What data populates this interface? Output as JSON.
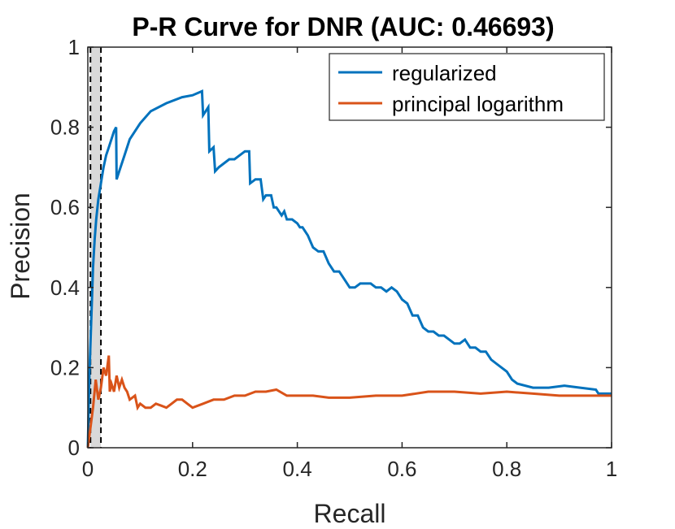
{
  "chart_data": {
    "type": "line",
    "title": "P-R Curve for DNR (AUC: 0.46693)",
    "xlabel": "Recall",
    "ylabel": "Precision",
    "xlim": [
      0,
      1
    ],
    "ylim": [
      0,
      1
    ],
    "xticks": [
      0,
      0.2,
      0.4,
      0.6,
      0.8,
      1
    ],
    "xtick_labels": [
      "0",
      "0.2",
      "0.4",
      "0.6",
      "0.8",
      "1"
    ],
    "yticks": [
      0,
      0.2,
      0.4,
      0.6,
      0.8,
      1
    ],
    "ytick_labels": [
      "0",
      "0.2",
      "0.4",
      "0.6",
      "0.8",
      "1"
    ],
    "grid": false,
    "legend_position": "top-right",
    "shaded_band": {
      "x_start": 0.005,
      "x_end": 0.025,
      "fill": "#d9d9d9",
      "edge_style": "dashed"
    },
    "series": [
      {
        "name": "regularized",
        "color": "#0072bd",
        "x": [
          0,
          0.003,
          0.006,
          0.01,
          0.013,
          0.016,
          0.02,
          0.025,
          0.03,
          0.035,
          0.04,
          0.045,
          0.05,
          0.054,
          0.055,
          0.06,
          0.07,
          0.08,
          0.1,
          0.12,
          0.15,
          0.18,
          0.2,
          0.218,
          0.22,
          0.23,
          0.232,
          0.24,
          0.243,
          0.25,
          0.26,
          0.27,
          0.28,
          0.29,
          0.3,
          0.308,
          0.31,
          0.32,
          0.33,
          0.335,
          0.34,
          0.35,
          0.355,
          0.36,
          0.37,
          0.375,
          0.38,
          0.39,
          0.4,
          0.405,
          0.41,
          0.42,
          0.43,
          0.44,
          0.45,
          0.46,
          0.47,
          0.48,
          0.49,
          0.5,
          0.51,
          0.52,
          0.53,
          0.54,
          0.55,
          0.56,
          0.57,
          0.58,
          0.59,
          0.6,
          0.61,
          0.62,
          0.63,
          0.64,
          0.65,
          0.66,
          0.67,
          0.68,
          0.69,
          0.7,
          0.71,
          0.72,
          0.73,
          0.74,
          0.75,
          0.76,
          0.77,
          0.78,
          0.79,
          0.8,
          0.81,
          0.82,
          0.85,
          0.88,
          0.91,
          0.94,
          0.97,
          0.975,
          1
        ],
        "y": [
          0,
          0.18,
          0.3,
          0.45,
          0.52,
          0.57,
          0.62,
          0.66,
          0.7,
          0.73,
          0.75,
          0.77,
          0.79,
          0.8,
          0.67,
          0.69,
          0.73,
          0.77,
          0.81,
          0.84,
          0.86,
          0.875,
          0.88,
          0.89,
          0.83,
          0.85,
          0.74,
          0.75,
          0.69,
          0.7,
          0.71,
          0.72,
          0.72,
          0.73,
          0.74,
          0.74,
          0.66,
          0.67,
          0.67,
          0.62,
          0.63,
          0.63,
          0.6,
          0.6,
          0.58,
          0.59,
          0.57,
          0.57,
          0.56,
          0.55,
          0.55,
          0.53,
          0.5,
          0.49,
          0.49,
          0.46,
          0.44,
          0.44,
          0.42,
          0.4,
          0.4,
          0.41,
          0.41,
          0.41,
          0.4,
          0.4,
          0.39,
          0.4,
          0.39,
          0.37,
          0.36,
          0.33,
          0.33,
          0.3,
          0.29,
          0.29,
          0.28,
          0.28,
          0.27,
          0.26,
          0.26,
          0.27,
          0.25,
          0.25,
          0.24,
          0.24,
          0.22,
          0.21,
          0.2,
          0.19,
          0.17,
          0.16,
          0.15,
          0.15,
          0.155,
          0.15,
          0.145,
          0.135,
          0.135
        ]
      },
      {
        "name": "principal logarithm",
        "color": "#d95319",
        "x": [
          0,
          0.005,
          0.01,
          0.015,
          0.02,
          0.025,
          0.03,
          0.035,
          0.04,
          0.042,
          0.045,
          0.05,
          0.055,
          0.06,
          0.065,
          0.07,
          0.075,
          0.08,
          0.09,
          0.095,
          0.1,
          0.11,
          0.12,
          0.13,
          0.14,
          0.15,
          0.16,
          0.17,
          0.18,
          0.19,
          0.2,
          0.22,
          0.24,
          0.26,
          0.28,
          0.3,
          0.32,
          0.34,
          0.36,
          0.38,
          0.4,
          0.43,
          0.46,
          0.5,
          0.55,
          0.6,
          0.65,
          0.7,
          0.75,
          0.8,
          0.85,
          0.9,
          0.95,
          1
        ],
        "y": [
          0,
          0.05,
          0.1,
          0.17,
          0.12,
          0.15,
          0.2,
          0.18,
          0.23,
          0.14,
          0.16,
          0.14,
          0.18,
          0.15,
          0.17,
          0.15,
          0.14,
          0.12,
          0.13,
          0.1,
          0.11,
          0.1,
          0.1,
          0.11,
          0.105,
          0.1,
          0.11,
          0.12,
          0.12,
          0.11,
          0.1,
          0.11,
          0.12,
          0.12,
          0.13,
          0.13,
          0.14,
          0.14,
          0.145,
          0.13,
          0.13,
          0.13,
          0.125,
          0.125,
          0.13,
          0.13,
          0.14,
          0.14,
          0.135,
          0.14,
          0.135,
          0.13,
          0.13,
          0.13
        ]
      }
    ]
  }
}
